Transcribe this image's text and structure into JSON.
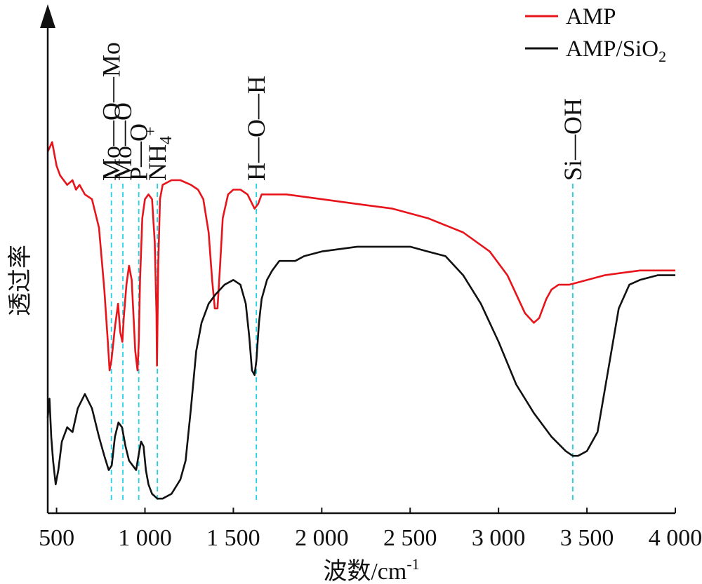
{
  "chart_data": {
    "type": "line",
    "xlabel": "波数/cm",
    "xlabel_sup": "-1",
    "ylabel": "透过率",
    "xlim": [
      450,
      4000
    ],
    "x_ticks": [
      500,
      1000,
      1500,
      2000,
      2500,
      3000,
      3500,
      4000
    ],
    "x_tick_labels": [
      "500",
      "1 000",
      "1 500",
      "2 000",
      "2 500",
      "3 000",
      "3 500",
      "4 000"
    ],
    "y_ticks_shown": false,
    "ylim": [
      0,
      100
    ],
    "grid": false,
    "legend_position": "top-right",
    "series": [
      {
        "name": "AMP",
        "color": "#e8141b",
        "x": [
          450,
          475,
          500,
          520,
          560,
          590,
          610,
          630,
          660,
          700,
          740,
          770,
          790,
          800,
          810,
          830,
          848,
          860,
          872,
          880,
          895,
          910,
          925,
          945,
          958,
          965,
          972,
          985,
          1000,
          1020,
          1040,
          1055,
          1065,
          1068,
          1075,
          1085,
          1100,
          1150,
          1200,
          1260,
          1300,
          1330,
          1360,
          1380,
          1395,
          1410,
          1425,
          1440,
          1470,
          1500,
          1540,
          1580,
          1620,
          1640,
          1660,
          1700,
          1800,
          2000,
          2200,
          2400,
          2600,
          2800,
          2950,
          3050,
          3150,
          3200,
          3230,
          3270,
          3300,
          3340,
          3400,
          3600,
          3800,
          4000
        ],
        "y": [
          74,
          76,
          71,
          69,
          67,
          68,
          66,
          67,
          65,
          64,
          58,
          45,
          34,
          28,
          30,
          37,
          42,
          36,
          34,
          39,
          46,
          50,
          47,
          32,
          28,
          34,
          47,
          60,
          64,
          65,
          64,
          55,
          40,
          29,
          50,
          64,
          67,
          68,
          68,
          67,
          66,
          64,
          57,
          47,
          41,
          41,
          50,
          60,
          65,
          66,
          66,
          65,
          62,
          63,
          65,
          65,
          65,
          64,
          63,
          62,
          60,
          57,
          53,
          48,
          40,
          38,
          39,
          43,
          45,
          46,
          46,
          48,
          49,
          49
        ]
      },
      {
        "name": "AMP/SiO",
        "name_sub": "2",
        "color": "#111111",
        "x": [
          450,
          460,
          470,
          480,
          495,
          510,
          530,
          560,
          590,
          620,
          660,
          700,
          740,
          770,
          795,
          812,
          830,
          850,
          870,
          890,
          910,
          930,
          950,
          968,
          978,
          992,
          1005,
          1020,
          1040,
          1070,
          1100,
          1150,
          1200,
          1230,
          1260,
          1290,
          1320,
          1360,
          1400,
          1450,
          1500,
          1540,
          1570,
          1590,
          1605,
          1620,
          1630,
          1645,
          1660,
          1690,
          1720,
          1760,
          1800,
          1850,
          1900,
          2000,
          2200,
          2400,
          2500,
          2600,
          2700,
          2800,
          2900,
          3000,
          3100,
          3200,
          3300,
          3380,
          3420,
          3450,
          3500,
          3560,
          3620,
          3680,
          3740,
          3800,
          3900,
          4000
        ],
        "y": [
          18,
          22,
          14,
          9,
          4,
          7,
          13,
          16,
          15,
          20,
          23,
          20,
          14,
          10,
          7,
          8,
          14,
          17,
          16,
          12,
          9,
          8,
          7,
          11,
          13,
          12,
          7,
          4,
          2,
          1,
          1,
          2,
          5,
          9,
          20,
          32,
          38,
          42,
          44,
          46,
          47,
          46,
          42,
          35,
          28,
          27,
          30,
          38,
          43,
          47,
          49,
          51,
          51,
          51,
          52,
          53,
          54,
          54,
          54,
          53,
          52,
          48,
          42,
          34,
          25,
          19,
          14,
          11,
          10,
          10,
          11,
          15,
          28,
          41,
          46,
          47,
          48,
          48
        ]
      }
    ],
    "annotations": [
      {
        "label": "Mo—O—Mo",
        "x": 810
      },
      {
        "label": "Mo—O",
        "x": 875
      },
      {
        "label": "P—O",
        "x": 965
      },
      {
        "label": "NH",
        "sub": "4",
        "sup": "+",
        "x": 1070
      },
      {
        "label": "H—O—H",
        "x": 1630
      },
      {
        "label": "Si—OH",
        "x": 3420
      }
    ]
  }
}
